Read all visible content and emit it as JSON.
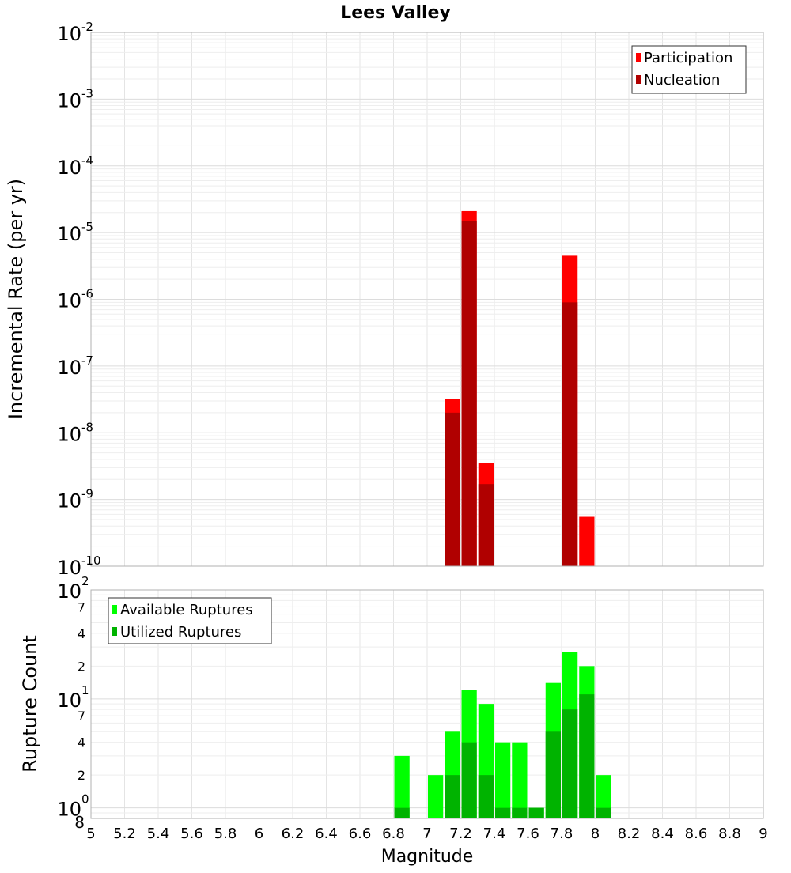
{
  "chart_data": [
    {
      "type": "bar",
      "title": "Lees Valley",
      "xlabel": "",
      "ylabel": "Incremental Rate (per yr)",
      "xlim": [
        5,
        9
      ],
      "ylim": [
        1e-10,
        0.01
      ],
      "yscale": "log",
      "grid": true,
      "legend_position": "top-right",
      "y_ticks": [
        {
          "base": "10",
          "exp": "-2",
          "value": 0.01
        },
        {
          "base": "10",
          "exp": "-3",
          "value": 0.001
        },
        {
          "base": "10",
          "exp": "-4",
          "value": 0.0001
        },
        {
          "base": "10",
          "exp": "-5",
          "value": 1e-05
        },
        {
          "base": "10",
          "exp": "-6",
          "value": 1e-06
        },
        {
          "base": "10",
          "exp": "-7",
          "value": 1e-07
        },
        {
          "base": "10",
          "exp": "-8",
          "value": 1e-08
        },
        {
          "base": "10",
          "exp": "-9",
          "value": 1e-09
        },
        {
          "base": "10",
          "exp": "-10",
          "value": 1e-10
        }
      ],
      "series": [
        {
          "name": "Participation",
          "color": "#ff0000",
          "x": [
            7.15,
            7.25,
            7.35,
            7.85,
            7.95
          ],
          "values": [
            3.2e-08,
            2.1e-05,
            3.5e-09,
            4.5e-06,
            5.5e-10
          ]
        },
        {
          "name": "Nucleation",
          "color": "#b00000",
          "x": [
            7.15,
            7.25,
            7.35,
            7.85
          ],
          "values": [
            2e-08,
            1.5e-05,
            1.7e-09,
            9e-07
          ]
        }
      ]
    },
    {
      "type": "bar",
      "title": "",
      "xlabel": "Magnitude",
      "ylabel": "Rupture Count",
      "xlim": [
        5,
        9
      ],
      "ylim": [
        0.8,
        100
      ],
      "yscale": "log",
      "grid": true,
      "legend_position": "top-left",
      "x_ticks": [
        "5",
        "5.2",
        "5.4",
        "5.6",
        "5.8",
        "6",
        "6.2",
        "6.4",
        "6.6",
        "6.8",
        "7",
        "7.2",
        "7.4",
        "7.6",
        "7.8",
        "8",
        "8.2",
        "8.4",
        "8.6",
        "8.8",
        "9"
      ],
      "y_major_ticks": [
        {
          "base": "10",
          "exp": "2",
          "value": 100
        },
        {
          "base": "10",
          "exp": "1",
          "value": 10
        },
        {
          "base": "10",
          "exp": "0",
          "value": 1
        }
      ],
      "y_minor_ticks": [
        {
          "label": "7",
          "value": 70
        },
        {
          "label": "4",
          "value": 40
        },
        {
          "label": "2",
          "value": 20
        },
        {
          "label": "7",
          "value": 7
        },
        {
          "label": "4",
          "value": 4
        },
        {
          "label": "2",
          "value": 2
        },
        {
          "label": "8",
          "value": 0.8
        }
      ],
      "series": [
        {
          "name": "Available Ruptures",
          "color": "#00ff00",
          "x": [
            6.85,
            7.05,
            7.15,
            7.25,
            7.35,
            7.45,
            7.55,
            7.65,
            7.75,
            7.85,
            7.95,
            8.05
          ],
          "values": [
            3,
            2,
            5,
            12,
            9,
            4,
            4,
            1,
            14,
            27,
            20,
            2
          ]
        },
        {
          "name": "Utilized Ruptures",
          "color": "#00b300",
          "x": [
            6.85,
            7.15,
            7.25,
            7.35,
            7.45,
            7.55,
            7.65,
            7.75,
            7.85,
            7.95,
            8.05
          ],
          "values": [
            1,
            2,
            4,
            2,
            1,
            1,
            1,
            5,
            8,
            11,
            1
          ]
        }
      ]
    }
  ]
}
